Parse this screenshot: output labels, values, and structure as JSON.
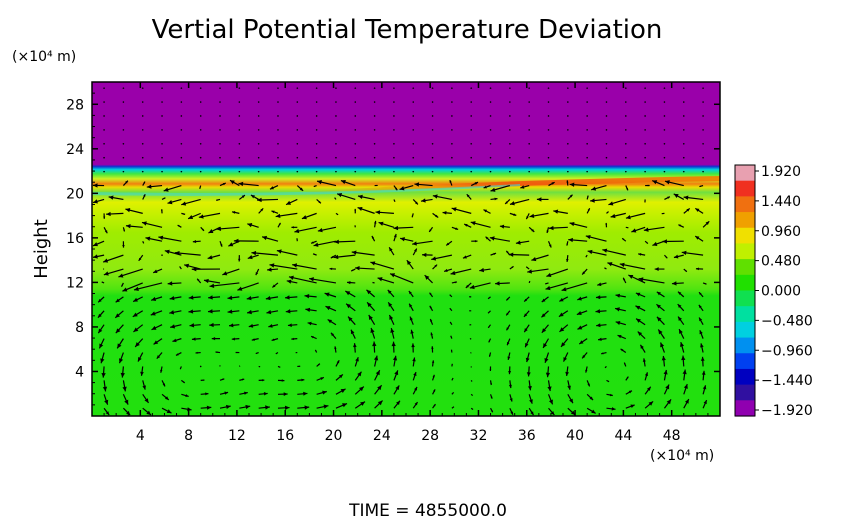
{
  "chart_data": {
    "type": "heatmap",
    "title": "Vertial Potential Temperature Deviation",
    "ylabel": "Height",
    "y_units": "(×10⁴ m)",
    "x_units": "(×10⁴ m)",
    "footer": "TIME  =  4855000.0",
    "xlim": [
      0,
      52
    ],
    "ylim": [
      0,
      30
    ],
    "x_ticks": [
      4,
      8,
      12,
      16,
      20,
      24,
      28,
      32,
      36,
      40,
      44,
      48
    ],
    "y_ticks": [
      4,
      8,
      12,
      16,
      20,
      24,
      28
    ],
    "colorbar": {
      "range": [
        -1.92,
        1.92
      ],
      "labels": [
        "1.920",
        "1.440",
        "0.960",
        "0.480",
        "0.000",
        "−0.480",
        "−0.960",
        "−1.440",
        "−1.920"
      ],
      "colors": [
        "#e8a0b0",
        "#f03020",
        "#f07010",
        "#f0a000",
        "#f0e000",
        "#c0f000",
        "#60e000",
        "#20e000",
        "#10e050",
        "#00e0a0",
        "#00d0e0",
        "#0090f0",
        "#0040f0",
        "#0000c0",
        "#3010a0",
        "#9000b0"
      ]
    },
    "field_layers": [
      {
        "y_from": 22.5,
        "y_to": 30,
        "value": -1.92
      },
      {
        "y_from": 20.2,
        "y_to": 22.5,
        "value": 0.3
      },
      {
        "y_from": 18.5,
        "y_to": 20.2,
        "value": 0.8
      },
      {
        "y_from": 11,
        "y_to": 18.5,
        "value": 0.3
      },
      {
        "y_from": 0,
        "y_to": 11,
        "value": 0.0
      }
    ],
    "vortices": [
      {
        "x": 7,
        "y": 4
      },
      {
        "x": 19,
        "y": 5.5
      },
      {
        "x": 43,
        "y": 4
      }
    ]
  }
}
